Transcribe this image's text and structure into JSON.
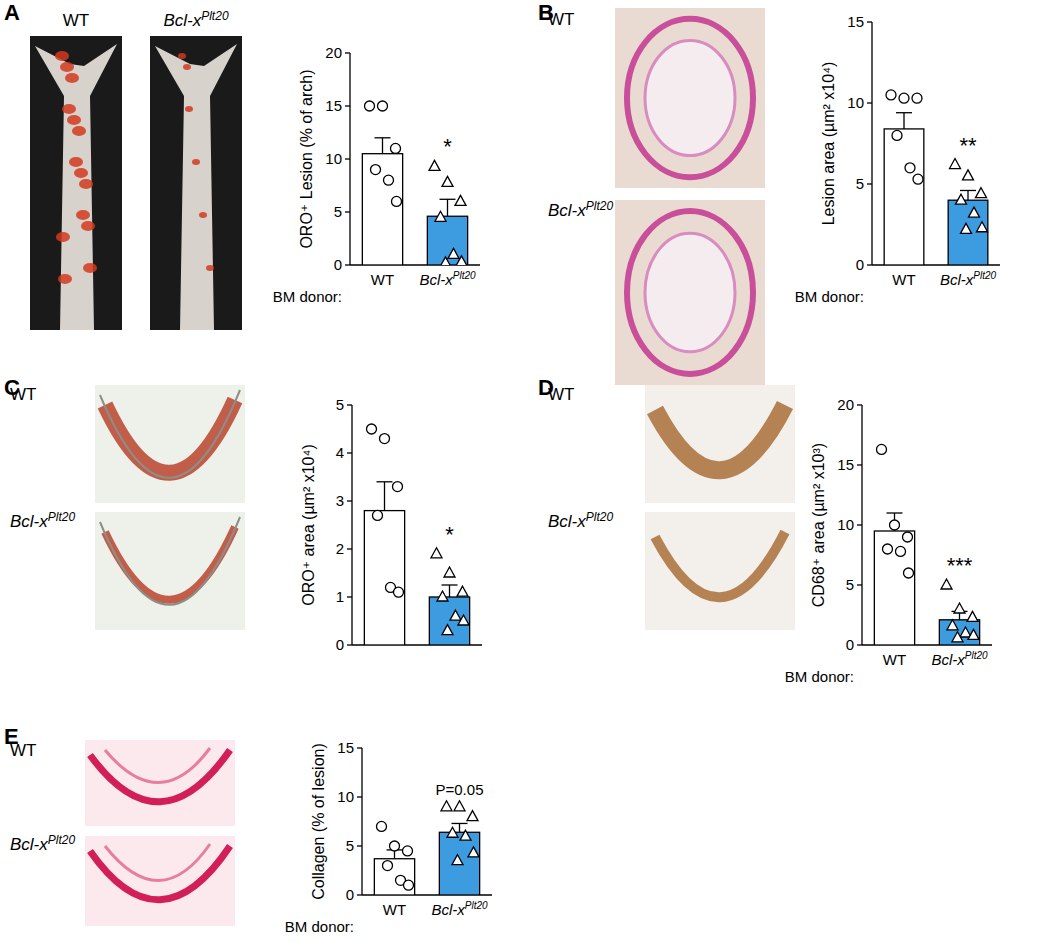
{
  "chart_data": [
    {
      "type": "bar",
      "panel": "A",
      "image_labels": [
        "WT",
        "Bcl-xPlt20"
      ],
      "y_label": "ORO⁺ Lesion (% of arch)",
      "x_label": "BM donor:",
      "categories": [
        "WT",
        "Bcl-xPlt20"
      ],
      "values": [
        10.5,
        4.6
      ],
      "errors": [
        1.5,
        1.6
      ],
      "colors": [
        "#ffffff",
        "#3d9be0"
      ],
      "points": [
        {
          "marker": "circle",
          "values": [
            15,
            15,
            11,
            9,
            8,
            6
          ]
        },
        {
          "marker": "triangle",
          "values": [
            9.3,
            7.8,
            6,
            4.5,
            1,
            0.3,
            0.2
          ]
        }
      ],
      "annotation": "*",
      "ylim": [
        0,
        20
      ],
      "yticks": [
        0,
        5,
        10,
        15,
        20
      ]
    },
    {
      "type": "bar",
      "panel": "B",
      "image_labels": [
        "WT",
        "Bcl-xPlt20"
      ],
      "y_label": "Lesion area (µm² x10⁴)",
      "x_label": "BM donor:",
      "categories": [
        "WT",
        "Bcl-xPlt20"
      ],
      "values": [
        8.4,
        4.0
      ],
      "errors": [
        1.0,
        0.6
      ],
      "colors": [
        "#ffffff",
        "#3d9be0"
      ],
      "points": [
        {
          "marker": "circle",
          "values": [
            10.5,
            10.3,
            10.3,
            8,
            6,
            5.3
          ]
        },
        {
          "marker": "triangle",
          "values": [
            6.2,
            5.5,
            4.4,
            4,
            3.2,
            2.3,
            2.2
          ]
        }
      ],
      "annotation": "**",
      "ylim": [
        0,
        15
      ],
      "yticks": [
        0,
        5,
        10,
        15
      ]
    },
    {
      "type": "bar",
      "panel": "C",
      "image_labels": [
        "WT",
        "Bcl-xPlt20"
      ],
      "y_label": "ORO⁺ area (µm² x10⁴)",
      "categories": [
        null,
        null
      ],
      "values": [
        2.8,
        1.0
      ],
      "errors": [
        0.6,
        0.25
      ],
      "colors": [
        "#ffffff",
        "#3d9be0"
      ],
      "points": [
        {
          "marker": "circle",
          "values": [
            4.5,
            4.3,
            3.3,
            2.7,
            1.2,
            1.1
          ]
        },
        {
          "marker": "triangle",
          "values": [
            1.9,
            1.5,
            1.1,
            1.0,
            0.6,
            0.5,
            0.3
          ]
        }
      ],
      "annotation": "*",
      "ylim": [
        0,
        5
      ],
      "yticks": [
        0,
        1,
        2,
        3,
        4,
        5
      ]
    },
    {
      "type": "bar",
      "panel": "D",
      "image_labels": [
        "WT",
        "Bcl-xPlt20"
      ],
      "y_label": "CD68⁺ area (µm² x10³)",
      "x_label": "BM donor:",
      "categories": [
        "WT",
        "Bcl-xPlt20"
      ],
      "values": [
        9.5,
        2.1
      ],
      "errors": [
        1.5,
        0.7
      ],
      "colors": [
        "#ffffff",
        "#3d9be0"
      ],
      "points": [
        {
          "marker": "circle",
          "values": [
            16.3,
            10,
            9,
            8,
            7.8,
            6
          ]
        },
        {
          "marker": "triangle",
          "values": [
            5,
            3,
            2.3,
            1.6,
            1,
            0.8,
            0.6
          ]
        }
      ],
      "annotation": "***",
      "ylim": [
        0,
        20
      ],
      "yticks": [
        0,
        5,
        10,
        15,
        20
      ]
    },
    {
      "type": "bar",
      "panel": "E",
      "image_labels": [
        "WT",
        "Bcl-xPlt20"
      ],
      "y_label": "Collagen (% of lesion)",
      "x_label": "BM donor:",
      "categories": [
        "WT",
        "Bcl-xPlt20"
      ],
      "values": [
        3.7,
        6.4
      ],
      "errors": [
        0.9,
        0.9
      ],
      "colors": [
        "#ffffff",
        "#3d9be0"
      ],
      "points": [
        {
          "marker": "circle",
          "values": [
            7,
            5,
            4.5,
            3,
            1.5,
            1
          ]
        },
        {
          "marker": "triangle",
          "values": [
            9,
            9,
            8,
            6.3,
            6,
            4.3,
            3.5
          ]
        }
      ],
      "annotation": "P=0.05",
      "ylim": [
        0,
        15
      ],
      "yticks": [
        0,
        5,
        10,
        15
      ]
    }
  ]
}
